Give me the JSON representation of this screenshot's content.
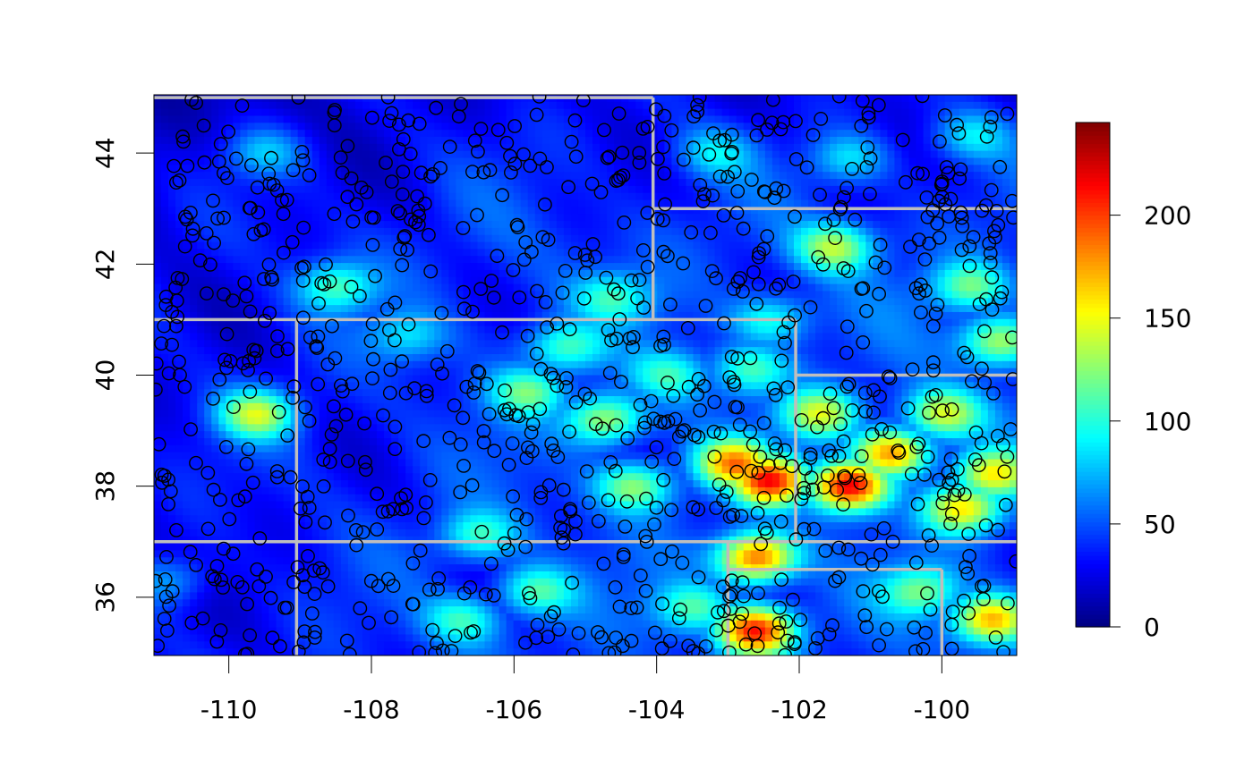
{
  "chart_data": {
    "type": "heatmap",
    "title": "",
    "xlabel": "",
    "ylabel": "",
    "xlim": [
      -111.05,
      -98.95
    ],
    "ylim": [
      34.95,
      45.05
    ],
    "x_ticks": [
      -110,
      -108,
      -106,
      -104,
      -102,
      -100
    ],
    "y_ticks": [
      36,
      38,
      40,
      42,
      44
    ],
    "x_tick_labels": [
      "-110",
      "-108",
      "-106",
      "-104",
      "-102",
      "-100"
    ],
    "y_tick_labels": [
      "36",
      "38",
      "40",
      "42",
      "44"
    ],
    "colorbar": {
      "zlim": [
        0,
        245
      ],
      "ticks": [
        0,
        50,
        100,
        150,
        200
      ],
      "tick_labels": [
        "0",
        "50",
        "100",
        "150",
        "200"
      ],
      "palette": [
        "#00007F",
        "#0000FF",
        "#007FFF",
        "#00FFFF",
        "#7FFF7F",
        "#FFFF00",
        "#FF7F00",
        "#FF0000",
        "#7F0000"
      ]
    },
    "boundary_color": "#BEBEBE",
    "point_color": "#000000",
    "hotspots": [
      {
        "x": -101.3,
        "y": 38.0,
        "value": 225
      },
      {
        "x": -102.4,
        "y": 38.1,
        "value": 205
      },
      {
        "x": -102.6,
        "y": 35.4,
        "value": 210
      },
      {
        "x": -100.7,
        "y": 38.6,
        "value": 185
      },
      {
        "x": -102.6,
        "y": 36.7,
        "value": 200
      },
      {
        "x": -102.9,
        "y": 38.4,
        "value": 175
      },
      {
        "x": -99.3,
        "y": 35.6,
        "value": 175
      },
      {
        "x": -99.7,
        "y": 37.6,
        "value": 160
      },
      {
        "x": -99.3,
        "y": 38.2,
        "value": 150
      },
      {
        "x": -101.7,
        "y": 39.3,
        "value": 140
      },
      {
        "x": -100.0,
        "y": 39.3,
        "value": 145
      },
      {
        "x": -109.6,
        "y": 39.3,
        "value": 145
      },
      {
        "x": -104.7,
        "y": 39.2,
        "value": 140
      },
      {
        "x": -104.3,
        "y": 38.0,
        "value": 130
      },
      {
        "x": -101.5,
        "y": 42.3,
        "value": 135
      },
      {
        "x": -99.2,
        "y": 40.6,
        "value": 140
      },
      {
        "x": -99.6,
        "y": 41.6,
        "value": 120
      },
      {
        "x": -105.8,
        "y": 39.7,
        "value": 115
      },
      {
        "x": -105.3,
        "y": 40.5,
        "value": 110
      },
      {
        "x": -103.8,
        "y": 40.0,
        "value": 105
      },
      {
        "x": -108.5,
        "y": 41.6,
        "value": 115
      },
      {
        "x": -106.5,
        "y": 37.1,
        "value": 110
      },
      {
        "x": -105.7,
        "y": 36.1,
        "value": 115
      },
      {
        "x": -106.7,
        "y": 35.6,
        "value": 110
      },
      {
        "x": -103.5,
        "y": 35.8,
        "value": 110
      },
      {
        "x": -100.3,
        "y": 36.1,
        "value": 120
      },
      {
        "x": -102.7,
        "y": 40.1,
        "value": 110
      },
      {
        "x": -102.4,
        "y": 41.0,
        "value": 105
      },
      {
        "x": -99.6,
        "y": 44.3,
        "value": 95
      },
      {
        "x": -103.2,
        "y": 44.0,
        "value": 90
      },
      {
        "x": -110.8,
        "y": 36.3,
        "value": 85
      },
      {
        "x": -109.5,
        "y": 44.0,
        "value": 90
      },
      {
        "x": -107.5,
        "y": 40.7,
        "value": 90
      },
      {
        "x": -101.3,
        "y": 43.9,
        "value": 95
      },
      {
        "x": -104.6,
        "y": 41.4,
        "value": 100
      }
    ],
    "background_value": 45,
    "state_boundaries": [
      [
        [
          -111.05,
          45.0
        ],
        [
          -104.05,
          45.0
        ]
      ],
      [
        [
          -104.05,
          45.0
        ],
        [
          -104.05,
          41.0
        ]
      ],
      [
        [
          -104.05,
          43.0
        ],
        [
          -98.95,
          43.0
        ]
      ],
      [
        [
          -111.05,
          41.0
        ],
        [
          -102.05,
          41.0
        ]
      ],
      [
        [
          -102.05,
          41.0
        ],
        [
          -102.05,
          40.0
        ]
      ],
      [
        [
          -102.05,
          40.0
        ],
        [
          -98.95,
          40.0
        ]
      ],
      [
        [
          -102.05,
          40.0
        ],
        [
          -102.05,
          37.0
        ]
      ],
      [
        [
          -111.05,
          37.0
        ],
        [
          -98.95,
          37.0
        ]
      ],
      [
        [
          -109.05,
          41.0
        ],
        [
          -109.05,
          34.95
        ]
      ],
      [
        [
          -103.0,
          37.0
        ],
        [
          -103.0,
          34.95
        ]
      ],
      [
        [
          -103.0,
          36.5
        ],
        [
          -100.0,
          36.5
        ]
      ],
      [
        [
          -100.0,
          36.5
        ],
        [
          -100.0,
          34.95
        ]
      ]
    ],
    "point_count": 1000
  }
}
